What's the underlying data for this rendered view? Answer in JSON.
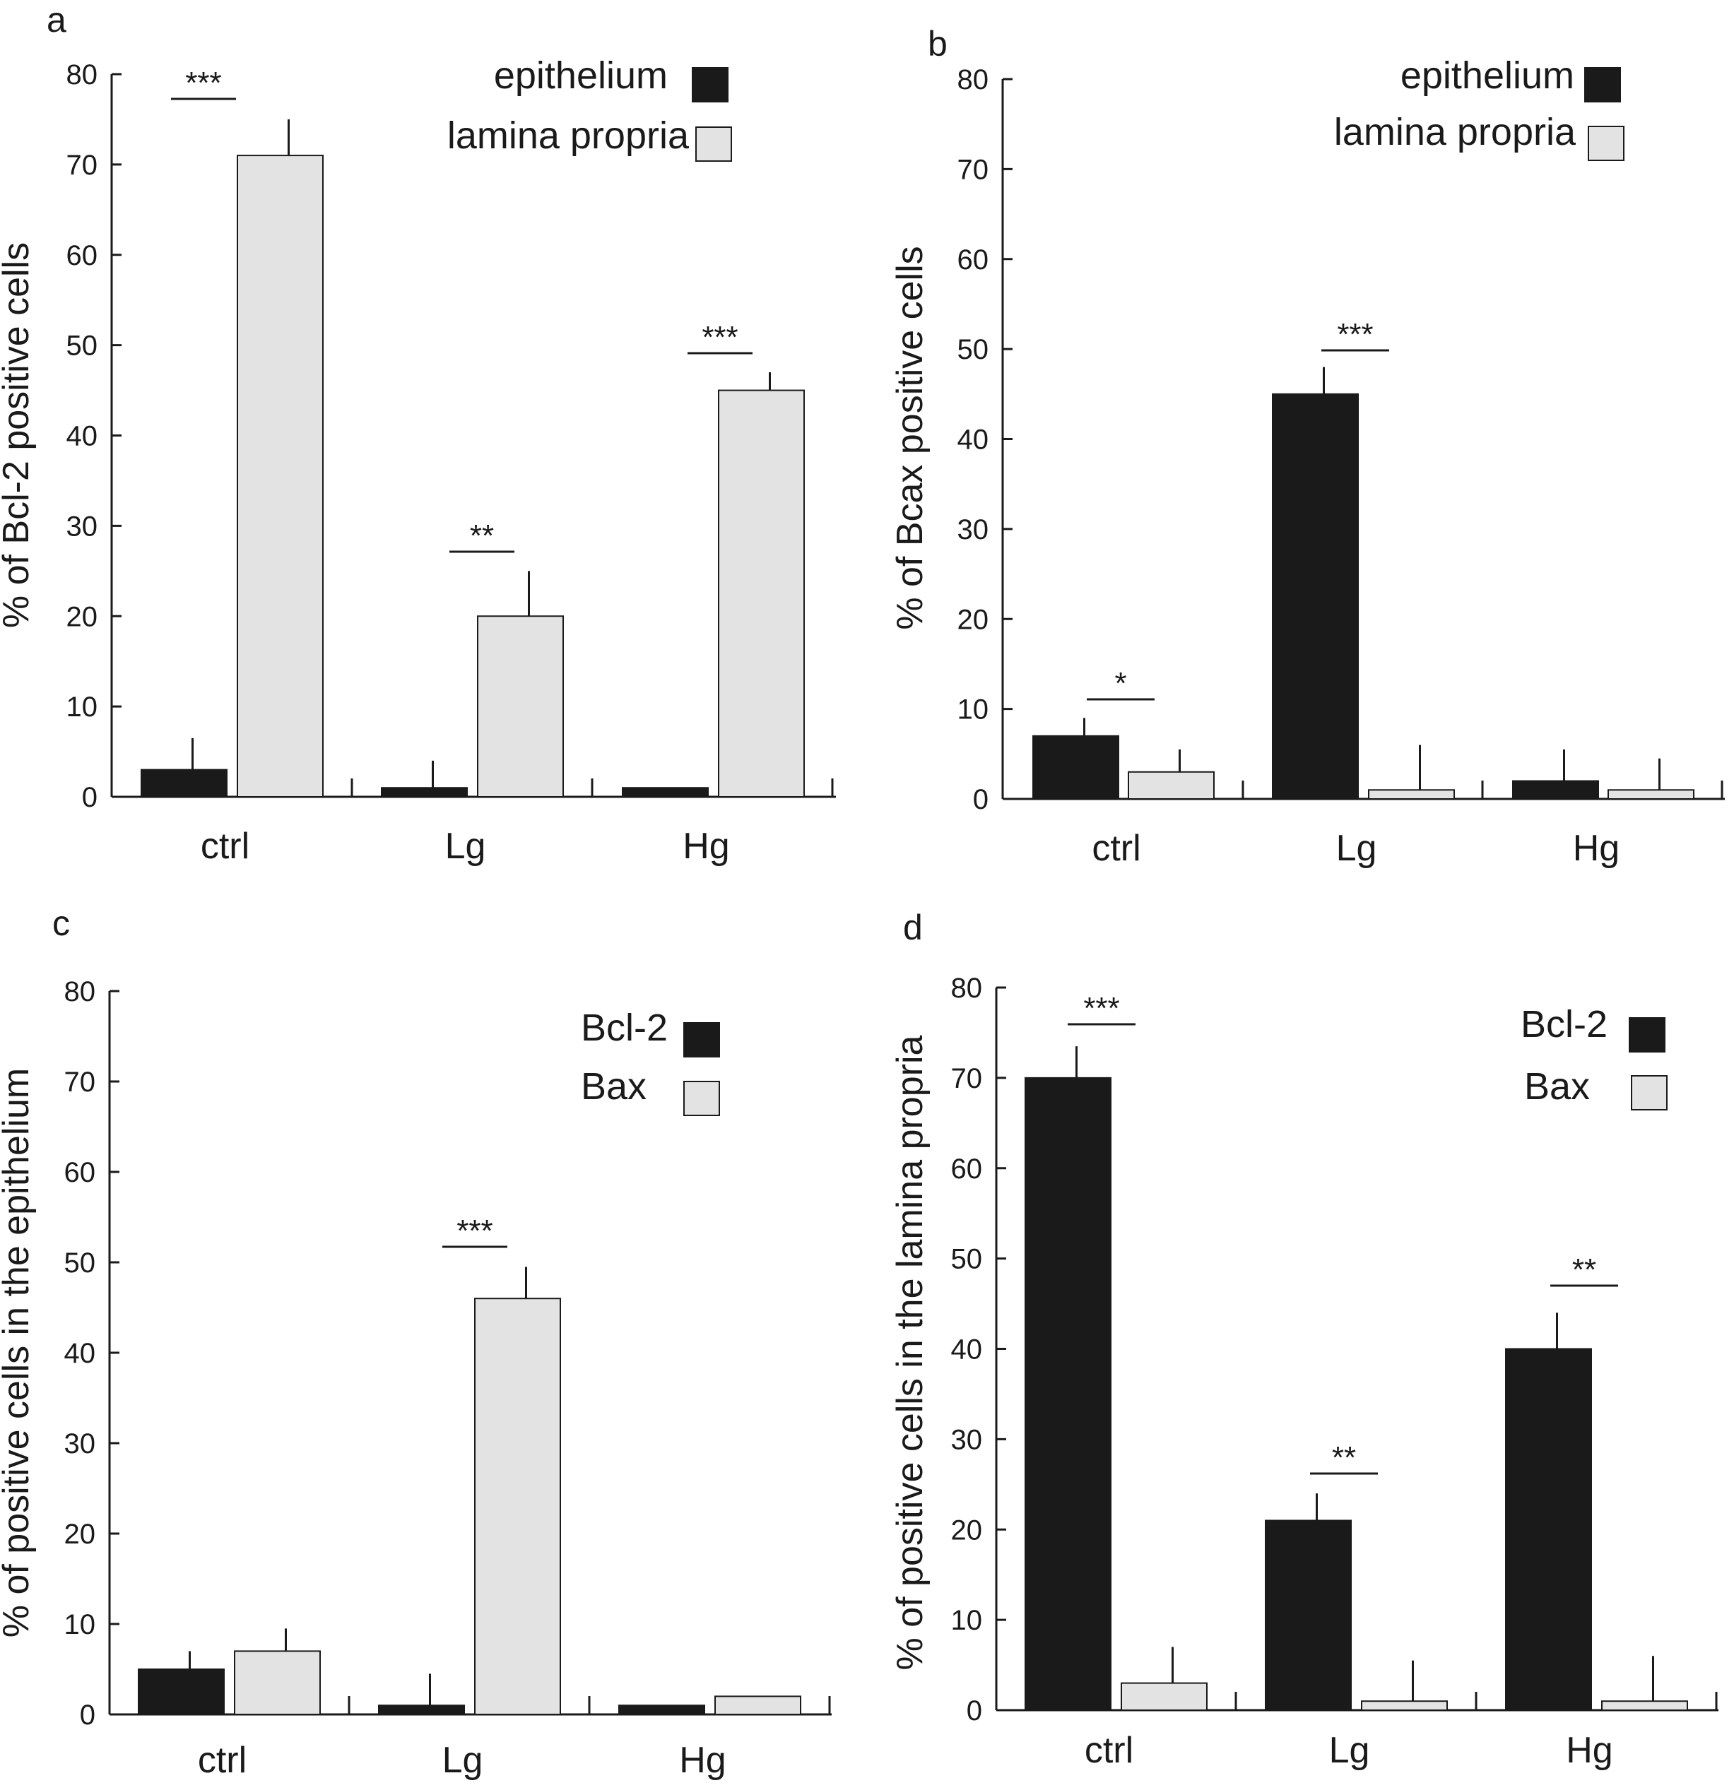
{
  "colors": {
    "dark_bar": "#1a1a1a",
    "light_bar": "#e3e3e3",
    "axis": "#1a1a1a",
    "bar_stroke": "#1a1a1a"
  },
  "chart_data": [
    {
      "id": "a",
      "panel_label": "a",
      "type": "bar",
      "ylabel": "% of Bcl-2 positive cells",
      "ylim": [
        0,
        80
      ],
      "yticks": [
        "0",
        "10",
        "20",
        "30",
        "40",
        "50",
        "60",
        "70",
        "80"
      ],
      "categories": [
        "ctrl",
        "Lg",
        "Hg"
      ],
      "legend_position": "top-right",
      "series": [
        {
          "name": "epithelium",
          "color_key": "dark_bar",
          "values": [
            3,
            1,
            1
          ],
          "errors": [
            3.5,
            3,
            0
          ]
        },
        {
          "name": "lamina propria",
          "color_key": "light_bar",
          "values": [
            71,
            20,
            45
          ],
          "errors": [
            4,
            5,
            2
          ]
        }
      ],
      "significance": [
        "***",
        "**",
        "***"
      ]
    },
    {
      "id": "b",
      "panel_label": "b",
      "type": "bar",
      "ylabel": "% of Bcax positive cells",
      "ylim": [
        0,
        80
      ],
      "yticks": [
        "0",
        "10",
        "20",
        "30",
        "40",
        "50",
        "60",
        "70",
        "80"
      ],
      "categories": [
        "ctrl",
        "Lg",
        "Hg"
      ],
      "legend_position": "top-right",
      "series": [
        {
          "name": "epithelium",
          "color_key": "dark_bar",
          "values": [
            7,
            45,
            2
          ],
          "errors": [
            2,
            3,
            3.5
          ]
        },
        {
          "name": "lamina propria",
          "color_key": "light_bar",
          "values": [
            3,
            1,
            1
          ],
          "errors": [
            2.5,
            5,
            3.5
          ]
        }
      ],
      "significance": [
        "*",
        "***",
        ""
      ]
    },
    {
      "id": "c",
      "panel_label": "c",
      "type": "bar",
      "ylabel": "% of positive cells in the epithelium",
      "ylim": [
        0,
        80
      ],
      "yticks": [
        "0",
        "10",
        "20",
        "30",
        "40",
        "50",
        "60",
        "70",
        "80"
      ],
      "categories": [
        "ctrl",
        "Lg",
        "Hg"
      ],
      "legend_position": "top-right",
      "series": [
        {
          "name": "Bcl-2",
          "color_key": "dark_bar",
          "values": [
            5,
            1,
            1
          ],
          "errors": [
            2,
            3.5,
            0
          ]
        },
        {
          "name": "Bax",
          "color_key": "light_bar",
          "values": [
            7,
            46,
            2
          ],
          "errors": [
            2.5,
            3.5,
            0
          ]
        }
      ],
      "significance": [
        "",
        "***",
        ""
      ]
    },
    {
      "id": "d",
      "panel_label": "d",
      "type": "bar",
      "ylabel": "% of positive cells in the lamina propria",
      "ylim": [
        0,
        80
      ],
      "yticks": [
        "0",
        "10",
        "20",
        "30",
        "40",
        "50",
        "60",
        "70",
        "80"
      ],
      "categories": [
        "ctrl",
        "Lg",
        "Hg"
      ],
      "legend_position": "top-right",
      "series": [
        {
          "name": "Bcl-2",
          "color_key": "dark_bar",
          "values": [
            70,
            21,
            40
          ],
          "errors": [
            3.5,
            3,
            4
          ]
        },
        {
          "name": "Bax",
          "color_key": "light_bar",
          "values": [
            3,
            1,
            1
          ],
          "errors": [
            4,
            4.5,
            5
          ]
        }
      ],
      "significance": [
        "***",
        "**",
        "**"
      ]
    }
  ]
}
